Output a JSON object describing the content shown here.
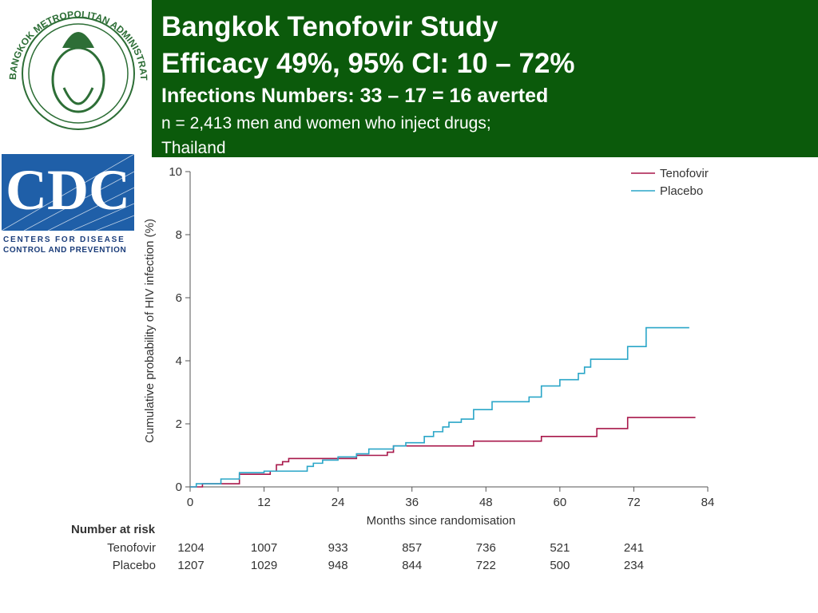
{
  "header": {
    "title": "Bangkok Tenofovir Study",
    "efficacy": "Efficacy 49%, 95% CI: 10 – 72%",
    "infections": "Infections Numbers: 33 – 17 = 16 averted",
    "population_1": "n = 2,413 men and women who inject drugs;",
    "population_2": "Thailand"
  },
  "logos": {
    "bangkok": "BANGKOK METROPOLITAN ADMINISTRATION",
    "cdc": "CDC",
    "cdc_line_1": "CENTERS FOR DISEASE",
    "cdc_line_2": "CONTROL AND PREVENTION"
  },
  "chart_data": {
    "type": "line",
    "step": "post",
    "x_label": "Months since randomisation",
    "y_label": "Cumulative probability of HIV infection (%)",
    "xlim": [
      0,
      84
    ],
    "xticks": [
      0,
      12,
      24,
      36,
      48,
      60,
      72,
      84
    ],
    "ylim": [
      0,
      10
    ],
    "yticks": [
      0,
      2,
      4,
      6,
      8,
      10
    ],
    "legend": "top-right",
    "series": [
      {
        "name": "Tenofovir",
        "color": "#a8174a",
        "x": [
          0,
          2,
          8,
          13,
          14,
          15,
          16,
          24,
          27,
          32,
          33,
          46,
          57,
          66,
          71,
          82
        ],
        "values": [
          0,
          0.1,
          0.4,
          0.5,
          0.7,
          0.8,
          0.9,
          0.9,
          1.0,
          1.1,
          1.3,
          1.45,
          1.6,
          1.85,
          2.2,
          2.2
        ]
      },
      {
        "name": "Placebo",
        "color": "#2aa6c8",
        "x": [
          0,
          1,
          5,
          8,
          12,
          19,
          20,
          21.5,
          24,
          27,
          29,
          33,
          35,
          38,
          39.5,
          41,
          42,
          44,
          46,
          49,
          55,
          57,
          60,
          63,
          64,
          65,
          71,
          74,
          81
        ],
        "values": [
          0,
          0.1,
          0.25,
          0.45,
          0.5,
          0.65,
          0.75,
          0.85,
          0.95,
          1.05,
          1.2,
          1.3,
          1.4,
          1.6,
          1.75,
          1.9,
          2.05,
          2.15,
          2.45,
          2.7,
          2.85,
          3.2,
          3.4,
          3.6,
          3.8,
          4.05,
          4.45,
          5.05,
          5.05
        ]
      }
    ],
    "risk_table": {
      "title": "Number at risk",
      "rows": [
        {
          "name": "Tenofovir",
          "values": [
            "1204",
            "1007",
            "933",
            "857",
            "736",
            "521",
            "241"
          ]
        },
        {
          "name": "Placebo",
          "values": [
            "1207",
            "1029",
            "948",
            "844",
            "722",
            "500",
            "234"
          ]
        }
      ]
    }
  }
}
